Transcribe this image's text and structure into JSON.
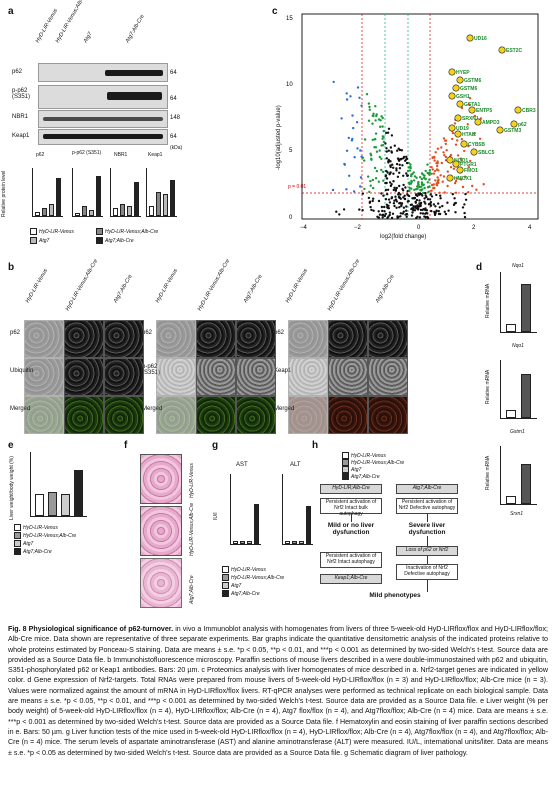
{
  "panel_a": {
    "label": "a",
    "columns": [
      "HyD-LIR-Venus",
      "HyD-LIR-Venus;Alb-Cre",
      "Atg7",
      "Atg7;Alb-Cre"
    ],
    "rows": [
      "p62",
      "p-p62 (S351)",
      "NBR1",
      "Keap1"
    ],
    "mw": [
      "64",
      "64",
      "148",
      "64"
    ],
    "kda": "(kDa)",
    "chart_titles": [
      "p62",
      "p-p62 (S351)",
      "NBR1",
      "Keap1"
    ],
    "ylabel": "Relative protein level",
    "legend": [
      "HyD-LIR-Venus",
      "HyD-LIR-Venus;Alb-Cre",
      "Atg7",
      "Atg7;Alb-Cre"
    ]
  },
  "panel_b": {
    "label": "b",
    "columns": [
      "HyD-LIR-Venus",
      "HyD-LIR-Venus;Alb-Cre",
      "Atg7;Alb-Cre"
    ],
    "group1_rows": [
      "p62",
      "Ubiquitin",
      "Merged"
    ],
    "group2_rows": [
      "p62",
      "p-p62 (S351)",
      "Merged"
    ],
    "group3_rows": [
      "p62",
      "Keap1",
      "Merged"
    ]
  },
  "panel_c": {
    "label": "c",
    "xlabel": "log2(fold change)",
    "ylabel": "-log10(adjusted p-value)",
    "p_label": "p = 0.01",
    "labels": [
      "UD16",
      "EST2C",
      "HYEP",
      "GSTM6",
      "GSTM6",
      "GSH1",
      "GSTA1",
      "ENTP5",
      "SRXN1",
      "AMPD3",
      "UD19",
      "HTAI2",
      "CYB5B",
      "SBLC5",
      "NQO1",
      "PTGR1",
      "FMO1",
      "HMOX1",
      "GSTM3",
      "CBR3",
      "p62"
    ]
  },
  "panel_d": {
    "label": "d",
    "genes": [
      "Nqo1",
      "Gstm1",
      "Srxn1"
    ],
    "ylabel": "Relative mRNA"
  },
  "panel_e": {
    "label": "e",
    "ylabel": "Liver weight/body weight (%)",
    "legend": [
      "HyD-LIR-Venus",
      "HyD-LIR-Venus;Alb-Cre",
      "Atg7",
      "Atg7;Alb-Cre"
    ]
  },
  "panel_f": {
    "label": "f",
    "rows": [
      "HyD-LIR-Venus",
      "HyD-LIR-Venus;Alb-Cre",
      "Atg7;Alb-Cre"
    ]
  },
  "panel_g": {
    "label": "g",
    "titles": [
      "AST",
      "ALT"
    ],
    "ylabel": "IU/l",
    "ast_ticks": [
      "0",
      "200",
      "400",
      "600",
      "800",
      "1000",
      "1200",
      "1400",
      "1600",
      "1800",
      "2000"
    ],
    "alt_ticks": [
      "0",
      "500",
      "1000",
      "1500",
      "2000",
      "2500"
    ],
    "legend": [
      "HyD-LIR-Venus",
      "HyD-LIR-Venus;Alb-Cre",
      "Atg7",
      "Atg7;Alb-Cre"
    ]
  },
  "panel_h": {
    "label": "h",
    "legend": [
      "HyD-LIR-Venus",
      "HyD-LIR-Venus;Alb-Cre",
      "Atg7",
      "Atg7;Alb-Cre"
    ],
    "left_top": "HyD-LIR;Alb-Cre",
    "left_box1": "Persistent activation of Nrf2 Intact bulk autophagy",
    "left_result": "Mild or no liver dysfunction",
    "left_box2": "Persistent activation of Nrf2 Intact autophagy",
    "left_bottom": "Keap1;Alb-Cre",
    "right_top": "Atg7;Alb-Cre",
    "right_box1": "Persistent activation of Nrf2 Defective autophagy",
    "right_result": "Severe liver dysfunction",
    "right_box2": "Loss of p62 or Nrf2",
    "right_box3": "Inactivation of Nrf2 Defective autophagy",
    "final": "Mild phenotypes"
  },
  "caption": {
    "title": "Fig. 8 Physiological significance of p62-turnover.",
    "body": "in vivo a Immunoblot analysis with homogenates from livers of three 5-week-old HyD-LIRflox/flox and HyD-LIRflox/flox; Alb-Cre mice. Data shown are representative of three separate experiments. Bar graphs indicate the quantitative densitometric analysis of the indicated proteins relative to whole proteins estimated by Ponceau-S staining. Data are means ± s.e. *p < 0.05, **p < 0.01, and ***p < 0.001 as determined by two-sided Welch's t-test. Source data are provided as a Source Data file. b Immunohistofluorescence microscopy. Paraffin sections of mouse livers described in a were double-immunostained with p62 and ubiquitin, S351-phosphorylated p62 or Keap1 antibodies. Bars: 20 µm. c Proteomics analysis with liver homogenates of mice described in a. Nrf2-target genes are indicated in yellow color. d Gene expression of Nrf2-targets. Total RNAs were prepared from mouse livers of 5-week-old HyD-LIRflox/flox (n = 3) and HyD-LIRflox/flox; Alb-Cre mice (n = 3). Values were normalized against the amount of mRNA in HyD-LIRflox/flox livers. RT-qPCR analyses were performed as technical replicate on each biological sample. Data are means ± s.e. *p < 0.05, **p < 0.01, and ***p < 0.001 as determined by two-sided Welch's t-test. Source data are provided as a Source Data file. e Liver weight (% per body weight) of 5-week-old HyD-LIRflox/flox (n = 4), HyD-LIRflox/flox; Alb-Cre (n = 4), Atg7 flox/flox (n = 4), and Atg7flox/flox; Alb-Cre (n = 4) mice. Data are means ± s.e. ***p < 0.001 as determined by two-sided Welch's t-test. Source data are provided as a Source Data file. f Hematoxylin and eosin staining of liver paraffin sections described in e. Bars: 50 µm. g Liver function tests of the mice used in 5-week-old HyD-LIRflox/flox (n = 4), HyD-LIRflox/flox; Alb-Cre (n = 4), Atg7flox/flox (n = 4), and Atg7flox/flox; Alb-Cre (n = 4) mice. The serum levels of aspartate aminotransferase (AST) and alanine aminotransferase (ALT) were measured. IU/L, international units/liter. Data are means ± s.e. *p < 0.05 as determined by two-sided Welch's t-test. Source data are provided as a Source Data file. g Schematic diagram of liver pathology."
  }
}
